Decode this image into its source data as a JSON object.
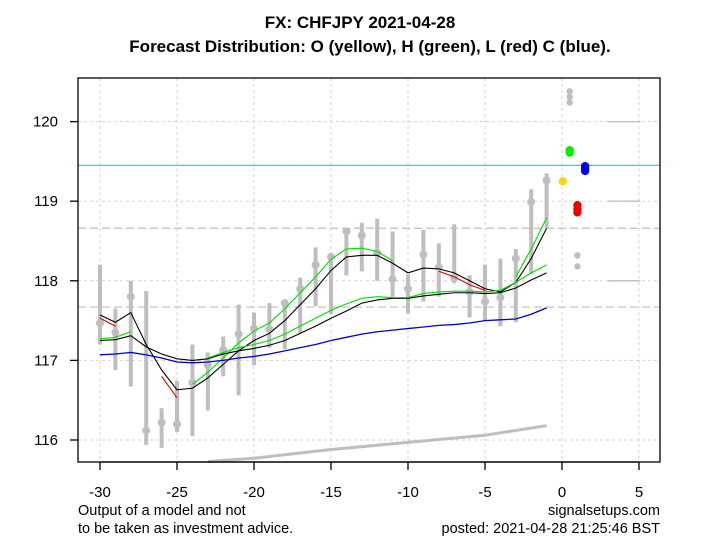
{
  "chart_data": {
    "type": "line",
    "title": "FX: CHFJPY 2021-04-28",
    "subtitle": "Forecast Distribution: O (yellow), H (green), L (red) C (blue).",
    "xlabel": "",
    "ylabel": "",
    "xlim": [
      -32,
      6.3
    ],
    "ylim": [
      115.73,
      120.55
    ],
    "x_ticks": [
      -30,
      -25,
      -20,
      -15,
      -10,
      -5,
      0,
      5
    ],
    "x_tick_labels": [
      "-30",
      "-25",
      "-20",
      "-15",
      "-10",
      "-5",
      "0",
      "5"
    ],
    "y_ticks": [
      116,
      117,
      118,
      119,
      120
    ],
    "y_tick_labels": [
      "116",
      "117",
      "118",
      "119",
      "120"
    ],
    "grid": true,
    "colors": {
      "bars": "#bebebe",
      "fast_black": "#000000",
      "fast_high": "#00dd00",
      "fast_low": "#dd0000",
      "slow_black": "#000000",
      "slow_high": "#00dd00",
      "blue_line": "#0000cc",
      "cyan_line": "#00e5ee",
      "trend": "#bebebe",
      "open": "#ffd700",
      "high": "#00ee00",
      "low": "#ee0000",
      "close": "#0000ee",
      "grid": "#d3d3d3",
      "ref_dashed": "#bebebe"
    },
    "x": [
      -30,
      -29,
      -28,
      -27,
      -26,
      -25,
      -24,
      -23,
      -22,
      -21,
      -20,
      -19,
      -18,
      -17,
      -16,
      -15,
      -14,
      -13,
      -12,
      -11,
      -10,
      -9,
      -8,
      -7,
      -6,
      -5,
      -4,
      -3,
      -2,
      -1
    ],
    "bars": {
      "high": [
        118.2,
        117.65,
        118.0,
        117.87,
        116.4,
        116.74,
        117.2,
        117.1,
        117.3,
        117.7,
        117.6,
        117.72,
        117.73,
        118.04,
        118.42,
        118.33,
        118.64,
        118.73,
        118.78,
        118.62,
        118.08,
        118.64,
        118.47,
        118.71,
        118.07,
        118.2,
        118.28,
        118.4,
        119.15,
        119.35
      ],
      "low": [
        117.2,
        116.88,
        116.67,
        115.94,
        115.9,
        116.1,
        116.05,
        116.37,
        116.8,
        116.56,
        116.94,
        117.16,
        117.14,
        117.34,
        117.68,
        117.58,
        118.07,
        118.12,
        118.0,
        117.8,
        117.59,
        117.74,
        117.8,
        117.97,
        117.54,
        117.49,
        117.43,
        117.48,
        118.08,
        118.66
      ],
      "close": [
        117.47,
        117.35,
        117.8,
        116.12,
        116.22,
        116.2,
        116.72,
        116.94,
        117.13,
        117.33,
        117.4,
        117.39,
        117.72,
        117.9,
        118.2,
        118.3,
        118.62,
        118.57,
        118.35,
        118.02,
        117.9,
        118.33,
        118.17,
        118.04,
        117.86,
        117.74,
        117.79,
        118.28,
        118.99,
        119.26
      ]
    },
    "series": [
      {
        "name": "fast-upper",
        "color": "#000000",
        "values": [
          117.57,
          117.48,
          117.6,
          117.2,
          116.88,
          116.63,
          116.65,
          116.78,
          116.95,
          117.12,
          117.25,
          117.34,
          117.5,
          117.7,
          117.9,
          118.13,
          118.3,
          118.32,
          118.32,
          118.22,
          118.1,
          118.16,
          118.15,
          118.1,
          118.0,
          117.9,
          117.86,
          117.98,
          118.28,
          118.66
        ]
      },
      {
        "name": "fast-upper-red",
        "color": "#dd0000",
        "values": [
          117.53,
          117.43,
          null,
          null,
          116.8,
          116.53,
          null,
          null,
          null,
          null,
          null,
          null,
          null,
          null,
          null,
          null,
          null,
          null,
          null,
          null,
          null,
          null,
          118.12,
          118.05,
          117.95,
          117.88,
          null,
          null,
          null,
          null
        ]
      },
      {
        "name": "fast-upper-green",
        "color": "#00dd00",
        "values": [
          null,
          null,
          null,
          null,
          null,
          null,
          116.7,
          116.85,
          117.03,
          117.22,
          117.37,
          117.47,
          117.65,
          117.85,
          118.05,
          118.27,
          118.4,
          118.41,
          118.37,
          118.25,
          null,
          null,
          null,
          null,
          null,
          null,
          null,
          118.05,
          118.4,
          118.79
        ]
      },
      {
        "name": "slow-black",
        "color": "#000000",
        "values": [
          117.25,
          117.26,
          117.31,
          117.17,
          117.08,
          117.02,
          117.0,
          117.02,
          117.08,
          117.12,
          117.15,
          117.19,
          117.25,
          117.34,
          117.43,
          117.53,
          117.62,
          117.72,
          117.76,
          117.78,
          117.78,
          117.81,
          117.83,
          117.85,
          117.85,
          117.84,
          117.85,
          117.91,
          118.01,
          118.1
        ]
      },
      {
        "name": "slow-green",
        "color": "#00dd00",
        "values": [
          117.27,
          117.29,
          117.36,
          null,
          null,
          null,
          null,
          117.03,
          117.1,
          117.16,
          117.2,
          117.25,
          117.33,
          117.43,
          117.53,
          117.63,
          117.71,
          117.78,
          117.8,
          117.79,
          117.79,
          117.84,
          117.86,
          117.87,
          117.87,
          117.86,
          117.88,
          117.98,
          118.1,
          118.2
        ]
      },
      {
        "name": "blue",
        "color": "#0000cc",
        "values": [
          117.07,
          117.08,
          117.1,
          117.07,
          117.03,
          116.98,
          116.97,
          116.98,
          117.0,
          117.03,
          117.05,
          117.08,
          117.12,
          117.16,
          117.2,
          117.25,
          117.29,
          117.33,
          117.36,
          117.38,
          117.4,
          117.42,
          117.44,
          117.45,
          117.47,
          117.5,
          117.51,
          117.52,
          117.58,
          117.66
        ]
      },
      {
        "name": "trend",
        "color": "#bebebe",
        "x": [
          -23,
          -20,
          -15,
          -10,
          -5,
          -1
        ],
        "values": [
          115.73,
          115.77,
          115.88,
          115.97,
          116.06,
          116.18
        ]
      }
    ],
    "reference_lines": [
      {
        "name": "cyan-level",
        "y": 119.45,
        "color": "#00e5ee",
        "style": "solid"
      },
      {
        "name": "upper-dashed",
        "y": 118.66,
        "color": "#bebebe",
        "style": "dashed"
      },
      {
        "name": "lower-dashed",
        "y": 117.67,
        "color": "#bebebe",
        "style": "dashed"
      }
    ],
    "short_levels": [
      {
        "y": 120.0,
        "x0": 3,
        "x1": 5.1
      },
      {
        "y": 119.0,
        "x0": 3,
        "x1": 5.1
      },
      {
        "y": 118.0,
        "x0": 3,
        "x1": 5.1
      }
    ],
    "forecast": {
      "open": [
        {
          "x": 0.05,
          "y": 119.25
        }
      ],
      "high": [
        {
          "x": 0.5,
          "y": 119.64
        },
        {
          "x": 0.5,
          "y": 119.61
        }
      ],
      "low": [
        {
          "x": 1.0,
          "y": 118.95
        },
        {
          "x": 1.0,
          "y": 118.9
        },
        {
          "x": 1.0,
          "y": 118.86
        }
      ],
      "close": [
        {
          "x": 1.5,
          "y": 119.44
        },
        {
          "x": 1.5,
          "y": 119.41
        },
        {
          "x": 1.5,
          "y": 119.38
        }
      ],
      "gray_upper": [
        {
          "x": 0.5,
          "y": 120.38
        },
        {
          "x": 0.5,
          "y": 120.31
        },
        {
          "x": 0.5,
          "y": 120.24
        }
      ],
      "gray_lower": [
        {
          "x": 1.0,
          "y": 118.32
        },
        {
          "x": 1.0,
          "y": 118.18
        }
      ]
    },
    "annotations": {
      "disclaimer_line1": "Output of a model and not",
      "disclaimer_line2": "to be taken as investment advice.",
      "site": "signalsetups.com",
      "posted": "posted: 2021-04-28 21:25:46 BST"
    }
  }
}
